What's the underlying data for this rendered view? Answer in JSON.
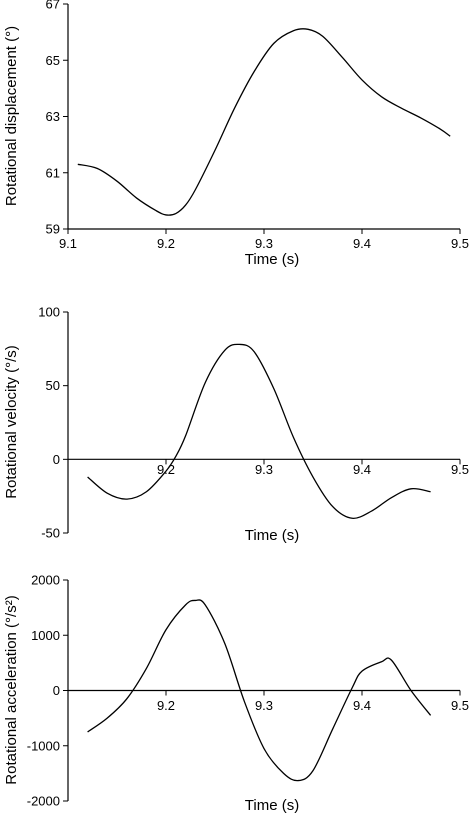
{
  "chart_data": [
    {
      "type": "line",
      "title": "",
      "xlabel": "Time (s)",
      "ylabel": "Rotational displacement (°)",
      "xlim": [
        9.1,
        9.5
      ],
      "ylim": [
        59,
        67
      ],
      "xticks": [
        "9.1",
        "9.2",
        "9.3",
        "9.4",
        "9.5"
      ],
      "yticks": [
        "59",
        "61",
        "63",
        "65",
        "67"
      ],
      "grid": false,
      "x": [
        9.11,
        9.13,
        9.15,
        9.17,
        9.19,
        9.2,
        9.21,
        9.22,
        9.23,
        9.25,
        9.27,
        9.29,
        9.31,
        9.33,
        9.345,
        9.36,
        9.38,
        9.4,
        9.42,
        9.44,
        9.46,
        9.48,
        9.49
      ],
      "series": [
        {
          "name": "",
          "values": [
            61.3,
            61.15,
            60.7,
            60.1,
            59.65,
            59.5,
            59.55,
            59.85,
            60.4,
            61.8,
            63.3,
            64.6,
            65.6,
            66.05,
            66.1,
            65.85,
            65.1,
            64.3,
            63.7,
            63.3,
            62.95,
            62.55,
            62.3
          ]
        }
      ]
    },
    {
      "type": "line",
      "title": "",
      "xlabel": "Time (s)",
      "ylabel": "Rotational velocity (°/s)",
      "xlim": [
        9.1,
        9.5
      ],
      "ylim": [
        -50,
        100
      ],
      "xticks": [
        "9.2",
        "9.3",
        "9.4",
        "9.5"
      ],
      "yticks": [
        "-50",
        "0",
        "50",
        "100"
      ],
      "grid": false,
      "zero_line": true,
      "x": [
        9.12,
        9.14,
        9.16,
        9.18,
        9.2,
        9.21,
        9.22,
        9.24,
        9.26,
        9.275,
        9.29,
        9.31,
        9.33,
        9.35,
        9.37,
        9.39,
        9.41,
        9.43,
        9.45,
        9.47
      ],
      "series": [
        {
          "name": "",
          "values": [
            -12,
            -23,
            -27,
            -22,
            -8,
            2,
            16,
            52,
            74,
            78,
            73,
            48,
            15,
            -12,
            -32,
            -40,
            -35,
            -26,
            -20,
            -22
          ]
        }
      ]
    },
    {
      "type": "line",
      "title": "",
      "xlabel": "Time (s)",
      "ylabel": "Rotational acceleration (°/s²)",
      "xlim": [
        9.1,
        9.5
      ],
      "ylim": [
        -2000,
        2000
      ],
      "xticks": [
        "9.2",
        "9.3",
        "9.4",
        "9.5"
      ],
      "yticks": [
        "-2000",
        "-1000",
        "0",
        "1000",
        "2000"
      ],
      "grid": false,
      "zero_line": true,
      "x": [
        9.12,
        9.14,
        9.16,
        9.18,
        9.2,
        9.22,
        9.23,
        9.24,
        9.26,
        9.28,
        9.3,
        9.32,
        9.335,
        9.35,
        9.37,
        9.39,
        9.4,
        9.42,
        9.43,
        9.45,
        9.47
      ],
      "series": [
        {
          "name": "",
          "values": [
            -750,
            -500,
            -150,
            400,
            1100,
            1550,
            1630,
            1550,
            850,
            -200,
            -1050,
            -1500,
            -1630,
            -1450,
            -700,
            50,
            350,
            520,
            550,
            0,
            -450
          ]
        }
      ]
    }
  ]
}
